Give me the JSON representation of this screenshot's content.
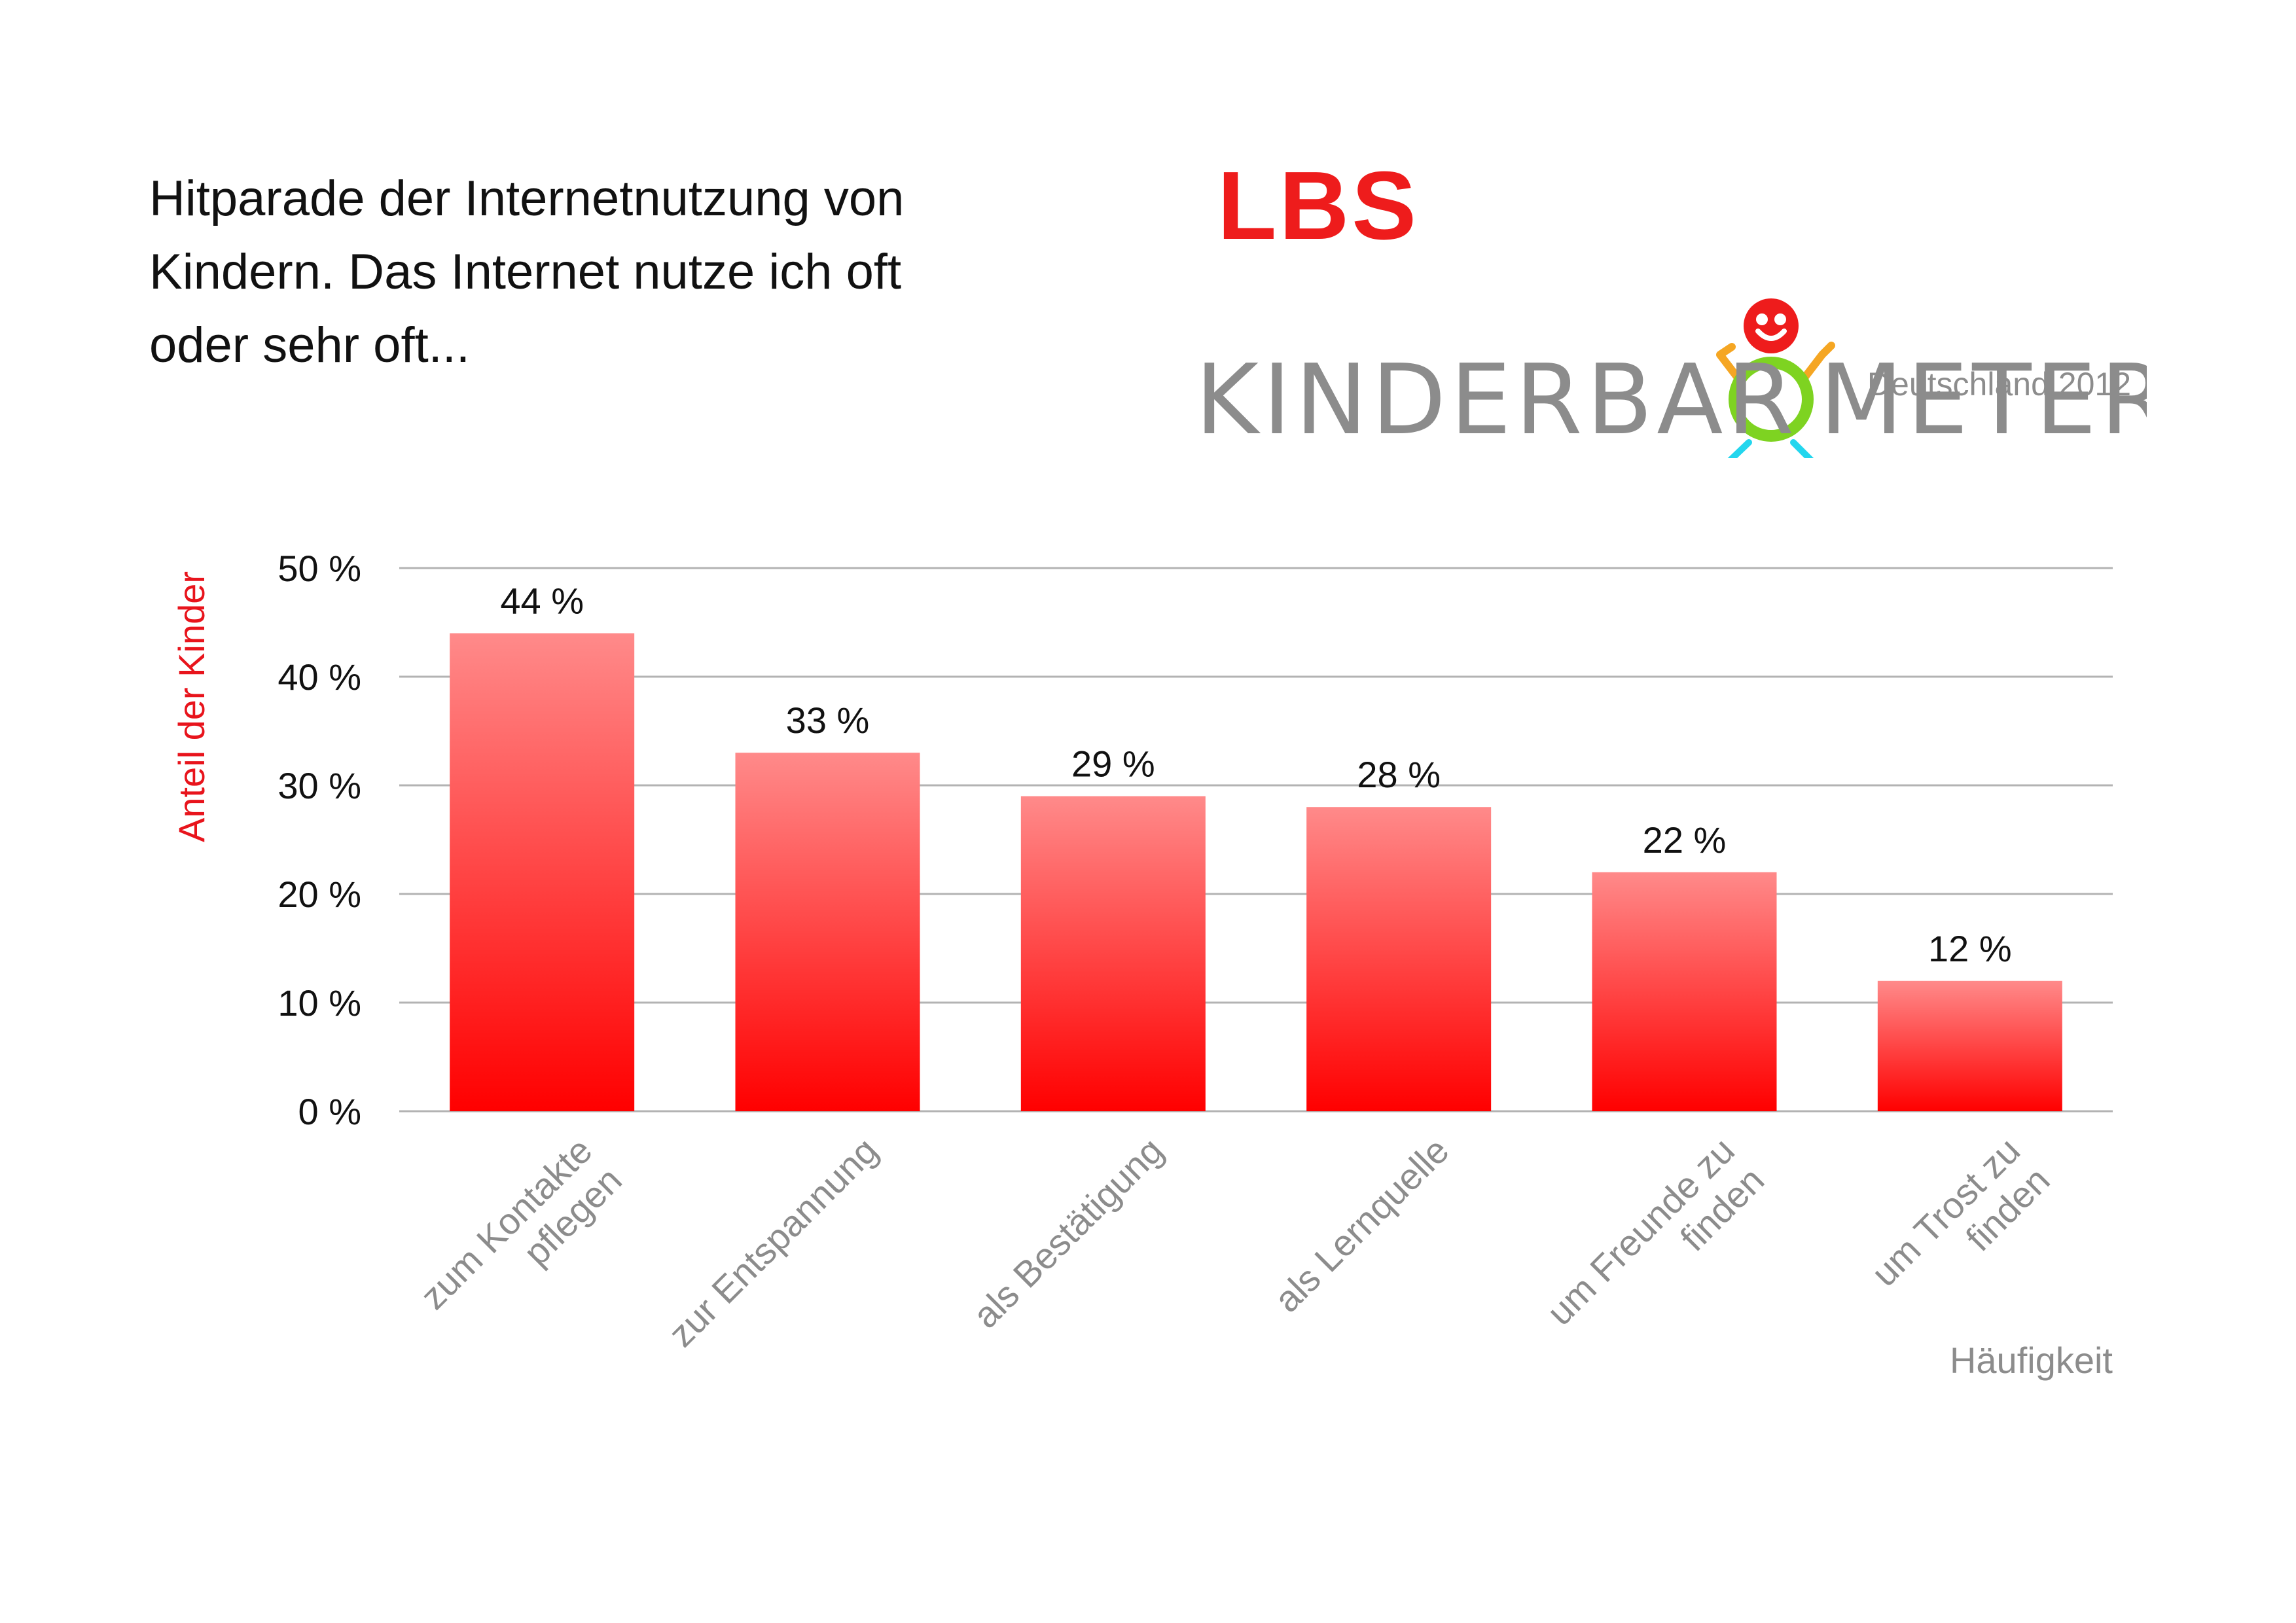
{
  "header": {
    "title_lines": [
      "Hitparade der Internetnutzung von",
      "Kindern. Das Internet nutze ich oft",
      "oder sehr oft..."
    ]
  },
  "logo": {
    "brand": "LBS",
    "wordmark": "KINDERBAROMETER",
    "subtitle": "Deutschland 2012",
    "colors": {
      "brand_red": "#ee1c1c",
      "wordmark_gray": "#8c8c8c",
      "face_red": "#ee1c1c",
      "arms_orange": "#f5a623",
      "body_green": "#7ed321",
      "legs_cyan": "#23d6ee"
    }
  },
  "chart_data": {
    "type": "bar",
    "categories": [
      [
        "zum Kontakte",
        "pflegen"
      ],
      [
        "zur Entspannung"
      ],
      [
        "als Bestätigung"
      ],
      [
        "als Lernquelle"
      ],
      [
        "um Freunde zu",
        "finden"
      ],
      [
        "um Trost zu",
        "finden"
      ]
    ],
    "values": [
      44,
      33,
      29,
      28,
      22,
      12
    ],
    "value_labels": [
      "44 %",
      "33 %",
      "29 %",
      "28 %",
      "22 %",
      "12 %"
    ],
    "yticks": [
      0,
      10,
      20,
      30,
      40,
      50
    ],
    "ytick_labels": [
      "0 %",
      "10 %",
      "20 %",
      "30 %",
      "40 %",
      "50 %"
    ],
    "ylim": [
      0,
      50
    ],
    "ylabel": "Anteil der Kinder",
    "xlabel": "Häufigkeit",
    "grid": true,
    "colors": {
      "bar_top": "#ff8a8a",
      "bar_bottom": "#ff0000",
      "ylabel": "#e8141c",
      "xlabel": "#8c8c8c",
      "grid": "#b3b3b3",
      "text": "#111111"
    }
  }
}
